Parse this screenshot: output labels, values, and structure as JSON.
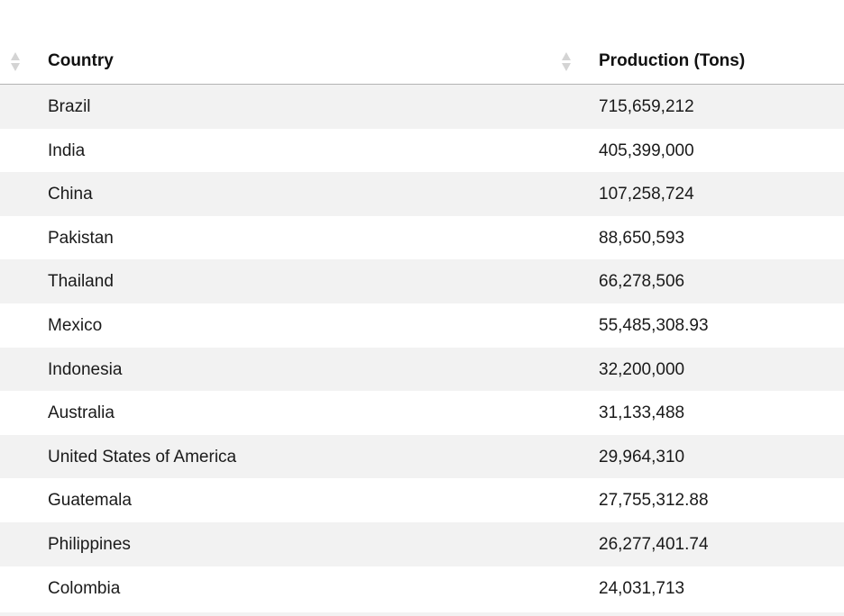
{
  "table": {
    "headers": {
      "country": "Country",
      "production": "Production (Tons)"
    },
    "rows": [
      {
        "country": "Brazil",
        "production": "715,659,212"
      },
      {
        "country": "India",
        "production": "405,399,000"
      },
      {
        "country": "China",
        "production": "107,258,724"
      },
      {
        "country": "Pakistan",
        "production": "88,650,593"
      },
      {
        "country": "Thailand",
        "production": "66,278,506"
      },
      {
        "country": "Mexico",
        "production": "55,485,308.93"
      },
      {
        "country": "Indonesia",
        "production": "32,200,000"
      },
      {
        "country": "Australia",
        "production": "31,133,488"
      },
      {
        "country": "United States of America",
        "production": "29,964,310"
      },
      {
        "country": "Guatemala",
        "production": "27,755,312.88"
      },
      {
        "country": "Philippines",
        "production": "26,277,401.74"
      },
      {
        "country": "Colombia",
        "production": "24,031,713"
      }
    ]
  }
}
